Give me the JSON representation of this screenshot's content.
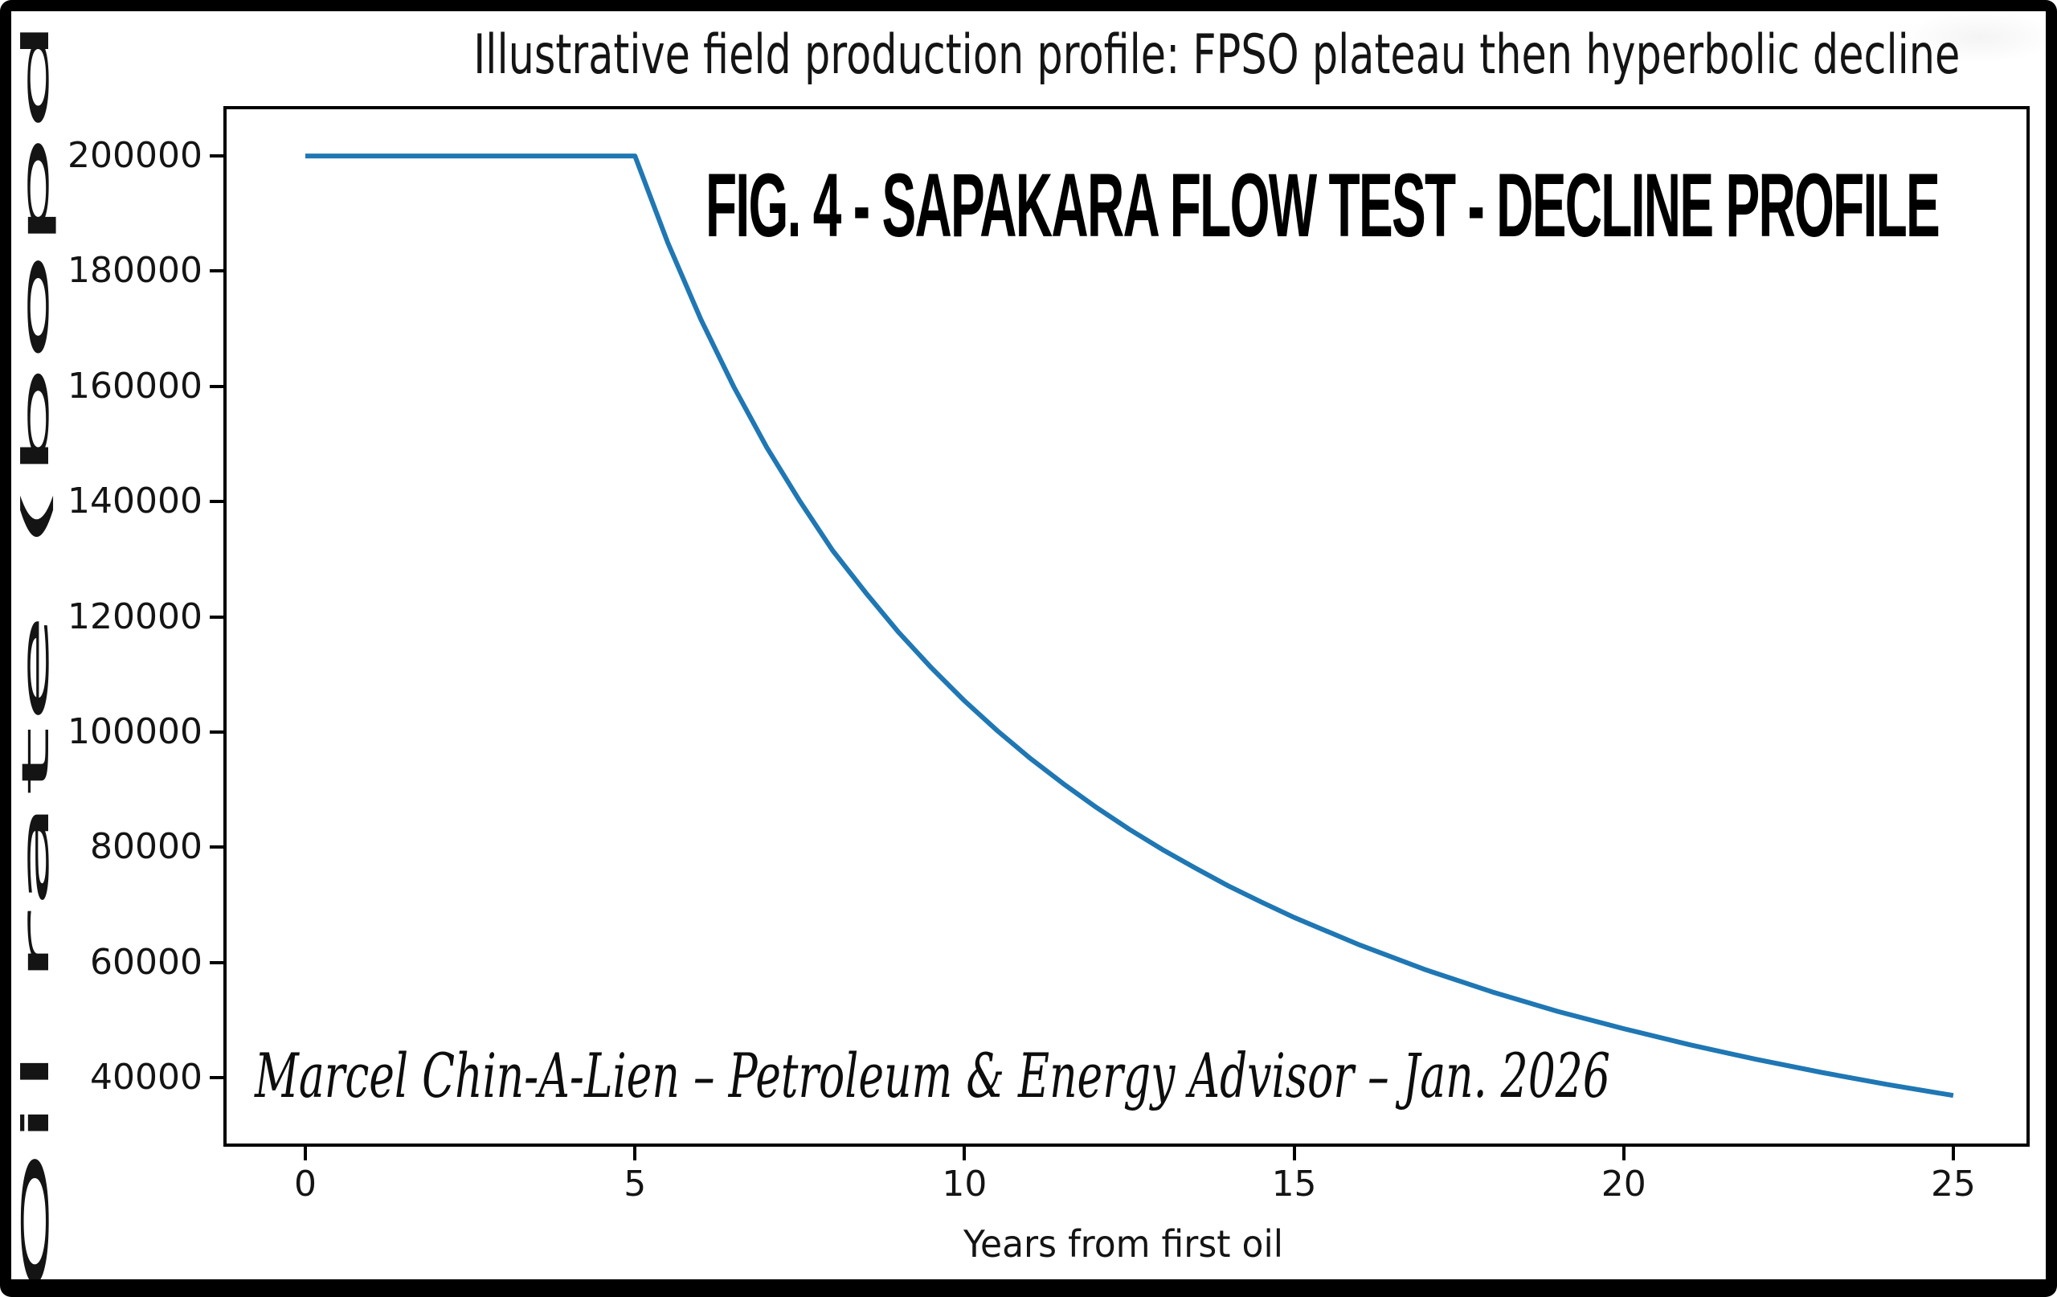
{
  "chart_data": {
    "type": "line",
    "title": "Illustrative field production profile: FPSO plateau then hyperbolic decline",
    "xlabel": "Years from first oil",
    "ylabel": "Oil rate (bopd)",
    "x": [
      0,
      5,
      5.5,
      6,
      6.5,
      7,
      7.5,
      8,
      8.5,
      9,
      9.5,
      10,
      10.5,
      11,
      11.5,
      12,
      12.5,
      13,
      13.5,
      14,
      14.5,
      15,
      16,
      17,
      18,
      19,
      20,
      21,
      22,
      23,
      24,
      25
    ],
    "y": [
      200000,
      200000,
      184900,
      171600,
      159900,
      149400,
      140100,
      131500,
      124200,
      117300,
      111100,
      105400,
      100200,
      95400,
      91000,
      86900,
      83100,
      79600,
      76400,
      73300,
      70500,
      67800,
      63000,
      58700,
      54900,
      51500,
      48500,
      45700,
      43200,
      40900,
      38800,
      36900
    ],
    "x_ticks": [
      0,
      5,
      10,
      15,
      20,
      25
    ],
    "y_ticks": [
      40000,
      60000,
      80000,
      100000,
      120000,
      140000,
      160000,
      180000,
      200000
    ],
    "xlim": [
      -1.195,
      26.11
    ],
    "ylim": [
      28560,
      208100
    ],
    "grid": false,
    "legend": null,
    "line_color": "#1f77b4",
    "plateau_rate_bopd": 200000,
    "plateau_years": 5,
    "final_rate_bopd": 36900,
    "annotations": {
      "figure_label": "FIG. 4 - SAPAKARA FLOW TEST - DECLINE PROFILE",
      "watermark": "Marcel Chin-A-Lien – Petroleum & Energy Advisor – Jan. 2026"
    }
  }
}
